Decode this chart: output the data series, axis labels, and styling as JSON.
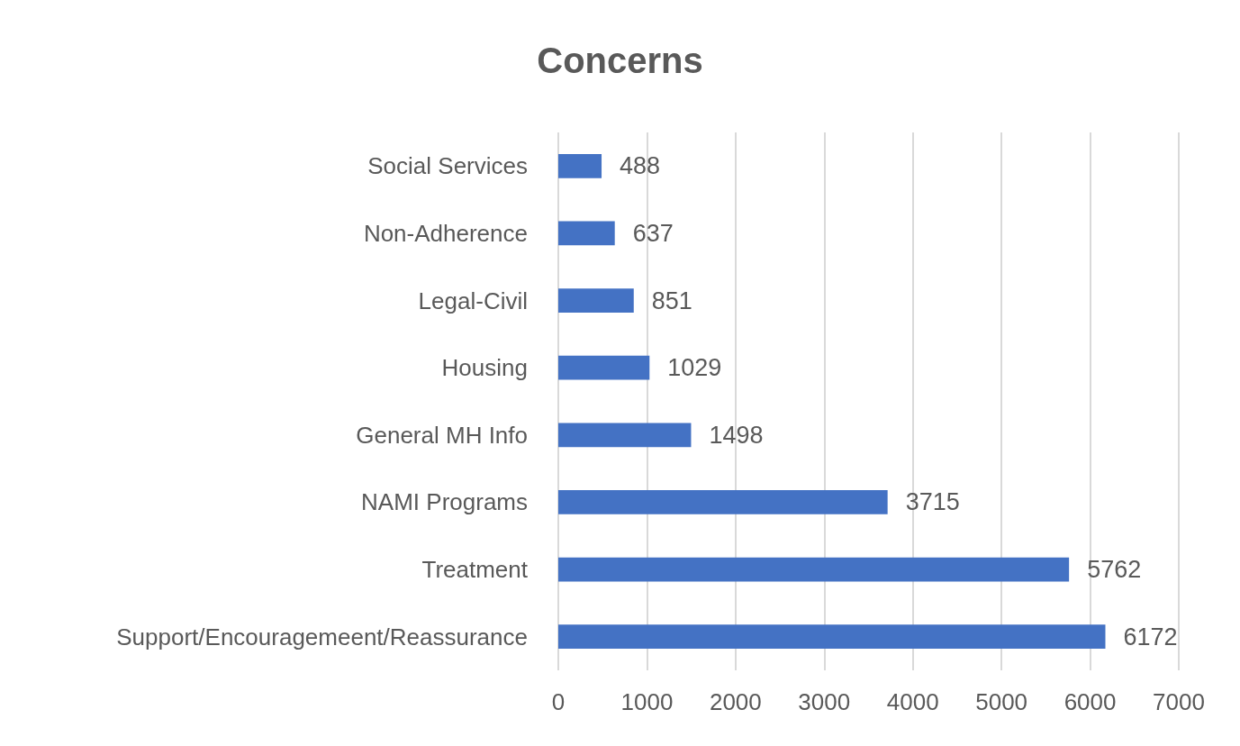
{
  "chart_data": {
    "type": "bar",
    "title": "Concerns",
    "orientation": "horizontal",
    "categories": [
      "Social Services",
      "Non-Adherence",
      "Legal-Civil",
      "Housing",
      "General MH Info",
      "NAMI Programs",
      "Treatment",
      "Support/Encouragemeent/Reassurance"
    ],
    "values": [
      488,
      637,
      851,
      1029,
      1498,
      3715,
      5762,
      6172
    ],
    "color": "#4472c4",
    "xlim": [
      0,
      7000
    ],
    "xticks": [
      0,
      1000,
      2000,
      3000,
      4000,
      5000,
      6000,
      7000
    ],
    "grid": "x",
    "data_labels": true
  }
}
